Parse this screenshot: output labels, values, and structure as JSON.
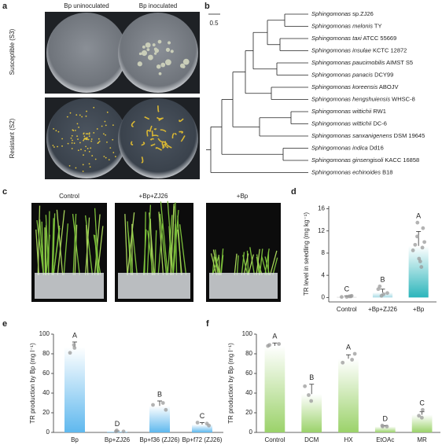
{
  "panel_labels": [
    "a",
    "b",
    "c",
    "d",
    "e",
    "f"
  ],
  "panel_a": {
    "columns": [
      "Bp uninoculated",
      "Bp inoculated"
    ],
    "rows": [
      "Susceptible (S3)",
      "Resistant (S2)"
    ]
  },
  "panel_b": {
    "scale": "0.5",
    "leaves": [
      {
        "name": "Sphingomonas",
        "strain": "sp.ZJ26"
      },
      {
        "name": "Sphingomonas melonis",
        "strain": "TY"
      },
      {
        "name": "Sphingomonas taxi",
        "strain": "ATCC 55669"
      },
      {
        "name": "Sphingomonas insulae",
        "strain": "KCTC 12872"
      },
      {
        "name": "Sphingomonas paucimobilis",
        "strain": "AIMST S5"
      },
      {
        "name": "Sphingomonas panacis",
        "strain": "DCY99"
      },
      {
        "name": "Sphingomonas koreensis",
        "strain": "ABOJV"
      },
      {
        "name": "Sphingomonas hengshuiensis",
        "strain": "WHSC-8"
      },
      {
        "name": "Sphingomonas wittichii",
        "strain": "RW1"
      },
      {
        "name": "Sphingomonas wittichii",
        "strain": "DC-6"
      },
      {
        "name": "Sphingomonas sanxanigenens",
        "strain": "DSM 19645"
      },
      {
        "name": "Sphingomonas indica",
        "strain": "Dd16"
      },
      {
        "name": "Sphingomonas ginsengisoli",
        "strain": "KACC 16858"
      },
      {
        "name": "Sphingomonas echinoides",
        "strain": "B18"
      }
    ]
  },
  "panel_c": {
    "columns": [
      "Control",
      "+Bp+ZJ26",
      "+Bp"
    ]
  },
  "chart_data": [
    {
      "type": "bar",
      "ylabel": "TR level in seedling (mg kg⁻¹)",
      "categories": [
        "Control",
        "+Bp+ZJ26",
        "+Bp"
      ],
      "values": [
        0.15,
        0.9,
        9.3
      ],
      "errors": [
        0.15,
        0.6,
        2.6
      ],
      "letters": [
        "C",
        "B",
        "A"
      ],
      "points": [
        [
          0.2,
          0.1,
          0.3,
          0.1,
          0.2
        ],
        [
          0.3,
          0.6,
          1.5,
          0.8,
          2.0
        ],
        [
          5.5,
          7.0,
          8.5,
          9,
          10,
          11,
          12.5,
          13.5,
          6.5,
          9.5
        ]
      ],
      "colors": [
        "#c8c8c8",
        "#a7dbe4",
        "#2bb5bb"
      ],
      "ylim": [
        -0.8,
        16.5
      ],
      "yticks": [
        0,
        4,
        8,
        12,
        16
      ]
    },
    {
      "type": "bar",
      "ylabel": "TR production by Bp (mg l⁻¹)",
      "categories": [
        "Bp",
        "Bp+ZJ26",
        "Bp+f36 (ZJ26)",
        "Bp+f72 (ZJ26)"
      ],
      "values": [
        87,
        1,
        27,
        8
      ],
      "errors": [
        5,
        0.5,
        5,
        2
      ],
      "letters": [
        "A",
        "D",
        "B",
        "C"
      ],
      "points": [
        [
          89,
          81,
          86
        ],
        [
          1,
          2,
          1
        ],
        [
          30,
          23,
          28
        ],
        [
          9,
          7,
          10
        ]
      ],
      "colors": [
        "#5fb8ee",
        "#5fb8ee",
        "#5fb8ee",
        "#5fb8ee"
      ],
      "ylim": [
        0,
        100
      ],
      "yticks": [
        0,
        20,
        40,
        60,
        80,
        100
      ]
    },
    {
      "type": "bar",
      "ylabel": "TR production by Bp (mg l⁻¹)",
      "categories": [
        "Control",
        "DCM",
        "HX",
        "EtOAc",
        "MR"
      ],
      "values": [
        88,
        39,
        75,
        6,
        18
      ],
      "errors": [
        3,
        10,
        4,
        1,
        3
      ],
      "letters": [
        "A",
        "B",
        "A",
        "D",
        "C"
      ],
      "points": [
        [
          89,
          88,
          90
        ],
        [
          47,
          32,
          38
        ],
        [
          80,
          74,
          71
        ],
        [
          6,
          7,
          6
        ],
        [
          23,
          15,
          17
        ]
      ],
      "colors": [
        "#9bd26a",
        "#9bd26a",
        "#9bd26a",
        "#9bd26a",
        "#9bd26a"
      ],
      "ylim": [
        0,
        100
      ],
      "yticks": [
        0,
        20,
        40,
        60,
        80,
        100
      ]
    }
  ]
}
